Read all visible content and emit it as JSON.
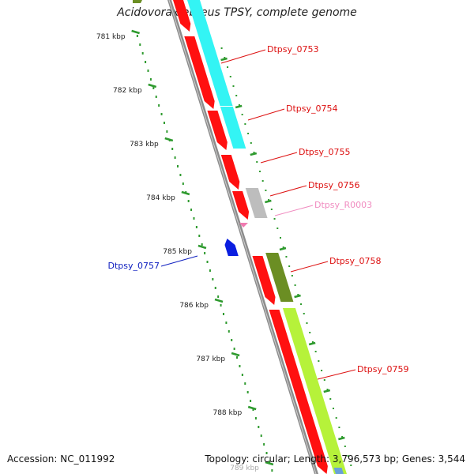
{
  "title": "Acidovorax ebreus TPSY, complete genome",
  "footer": {
    "accession": "Accession: NC_011992",
    "topology": "Topology: circular; Length: 3,796,573 bp; Genes: 3,544"
  },
  "colors": {
    "backbone": "#8c8c8c",
    "ruler_dots": "#2e9a2e",
    "cds_forward": "#ff1010",
    "cds_reverse": "#0a1ee0",
    "rna": "#f07ab0",
    "cog_cyan": "#33f4f4",
    "cog_olive": "#6b8e23",
    "cog_lime": "#b6f23a",
    "cog_gray": "#bdbdbd"
  },
  "ruler": {
    "ticks": [
      "781 kbp",
      "782 kbp",
      "783 kbp",
      "784 kbp",
      "785 kbp",
      "786 kbp",
      "787 kbp",
      "788 kbp",
      "789 kbp"
    ]
  },
  "genes": [
    {
      "label": "Dtpsy_0753",
      "strand": "forward",
      "label_color": "#dd1111"
    },
    {
      "label": "Dtpsy_0754",
      "strand": "forward",
      "label_color": "#dd1111"
    },
    {
      "label": "Dtpsy_0755",
      "strand": "forward",
      "label_color": "#dd1111"
    },
    {
      "label": "Dtpsy_0756",
      "strand": "forward",
      "label_color": "#dd1111"
    },
    {
      "label": "Dtpsy_R0003",
      "strand": "forward",
      "label_color": "#f08cc0"
    },
    {
      "label": "Dtpsy_0757",
      "strand": "reverse",
      "label_color": "#1020c0"
    },
    {
      "label": "Dtpsy_0758",
      "strand": "forward",
      "label_color": "#dd1111"
    },
    {
      "label": "Dtpsy_0759",
      "strand": "forward",
      "label_color": "#dd1111"
    }
  ]
}
